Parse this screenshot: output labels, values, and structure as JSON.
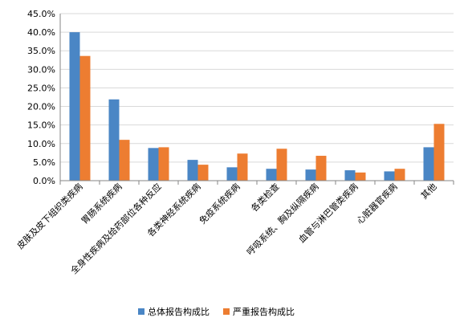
{
  "chart_data": {
    "type": "bar",
    "title": "",
    "xlabel": "",
    "ylabel": "",
    "ylim": [
      0,
      45
    ],
    "ytick_step": 5,
    "ytick_labels": [
      "0.0%",
      "5.0%",
      "10.0%",
      "15.0%",
      "20.0%",
      "25.0%",
      "30.0%",
      "35.0%",
      "40.0%",
      "45.0%"
    ],
    "grid": true,
    "legend_position": "bottom",
    "categories": [
      "皮肤及皮下组织类疾病",
      "胃肠系统疾病",
      "全身性疾病及给药部位各种反应",
      "各类神经系统疾病",
      "免疫系统疾病",
      "各类检查",
      "呼吸系统、胸及纵隔疾病",
      "血管与淋巴管类疾病",
      "心脏器官疾病",
      "其他"
    ],
    "series": [
      {
        "name": "总体报告构成比",
        "color": "#4A86C5",
        "values": [
          40.0,
          21.9,
          8.8,
          5.6,
          3.6,
          3.2,
          3.0,
          2.8,
          2.5,
          9.0
        ]
      },
      {
        "name": "严重报告构成比",
        "color": "#ED7D31",
        "values": [
          33.6,
          11.0,
          9.0,
          4.3,
          7.3,
          8.6,
          6.7,
          2.2,
          3.2,
          15.3
        ]
      }
    ]
  }
}
